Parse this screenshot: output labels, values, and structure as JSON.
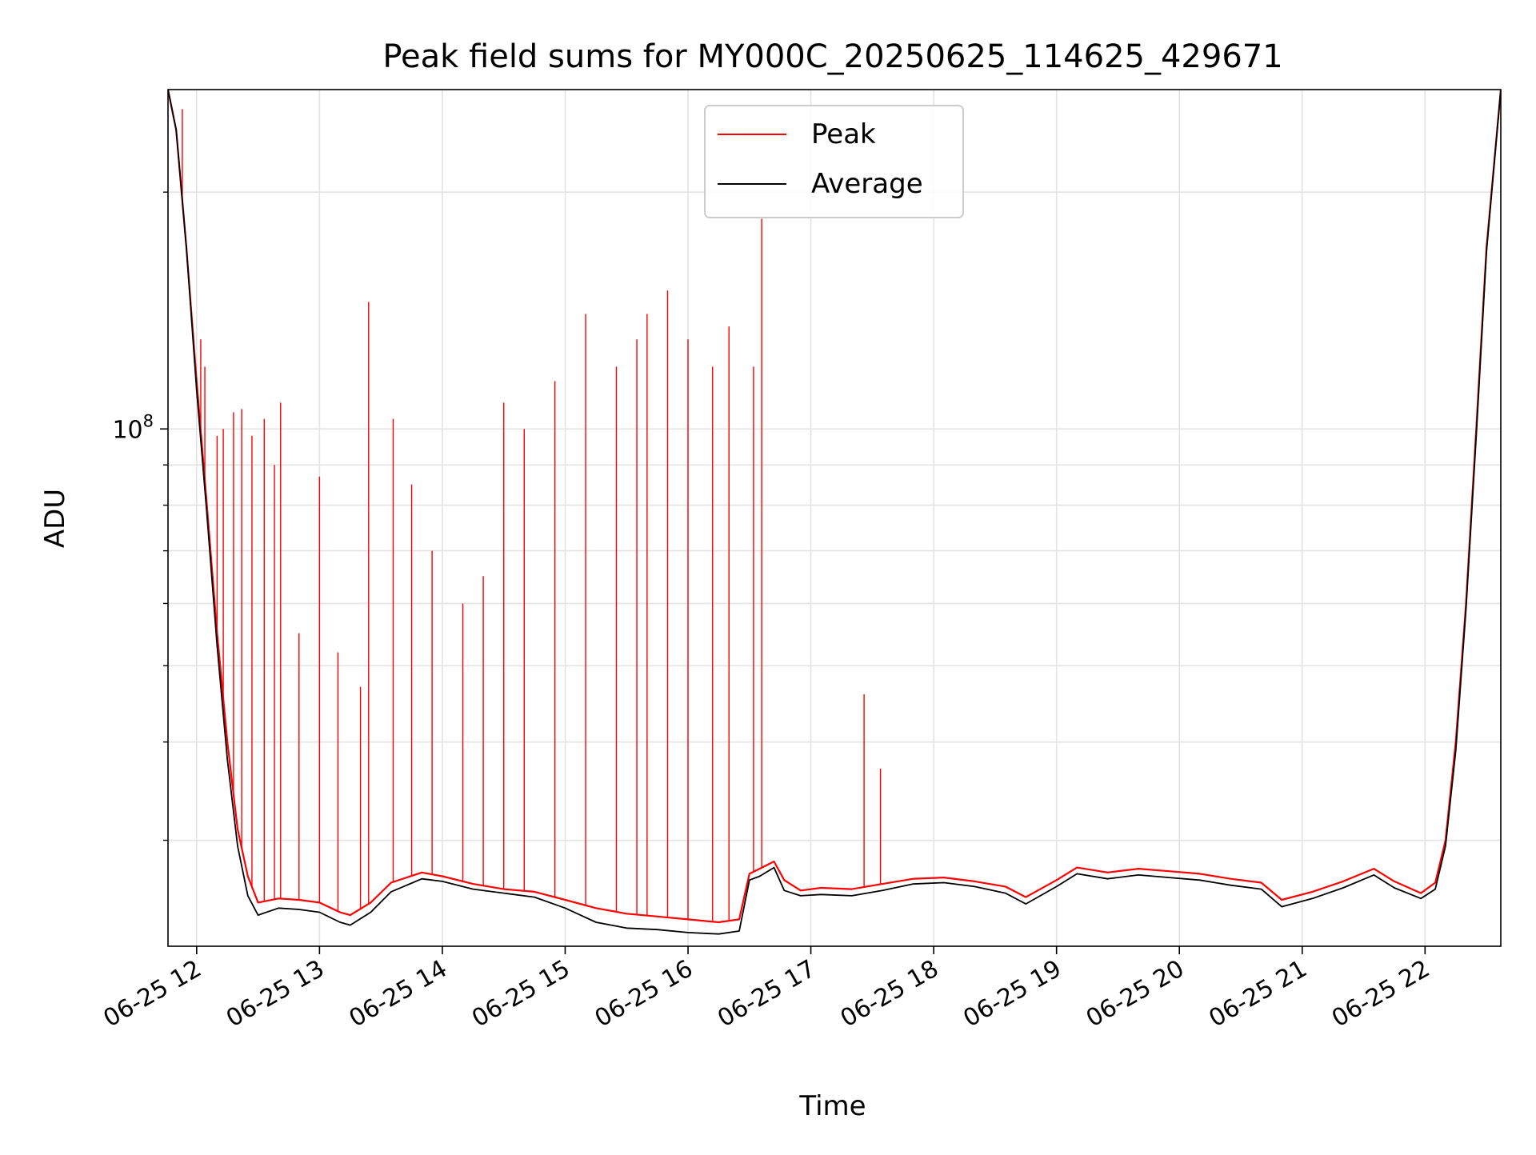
{
  "chart_data": {
    "type": "line",
    "title": "Peak field sums for MY000C_20250625_114625_429671",
    "xlabel": "Time",
    "ylabel": "ADU",
    "y_scale": "log",
    "grid": true,
    "legend_placement": "top-center",
    "ylim": [
      22000000,
      270000000
    ],
    "xlim": [
      "2025-06-25 11:46",
      "2025-06-25 22:37"
    ],
    "x_ticks": [
      "06-25 12",
      "06-25 13",
      "06-25 14",
      "06-25 15",
      "06-25 16",
      "06-25 17",
      "06-25 18",
      "06-25 19",
      "06-25 20",
      "06-25 21",
      "06-25 22"
    ],
    "y_ticks": [
      {
        "value": 100000000,
        "base": "10",
        "exp": "8"
      }
    ],
    "y_minor_ticks": [
      30000000,
      40000000,
      50000000,
      60000000,
      70000000,
      80000000,
      90000000,
      200000000
    ],
    "series": [
      {
        "name": "Peak",
        "color": "#ff0000",
        "baseline": [
          [
            "11:46",
            270000000
          ],
          [
            "11:50",
            240000000
          ],
          [
            "11:55",
            170000000
          ],
          [
            "12:00",
            115000000
          ],
          [
            "12:05",
            80000000
          ],
          [
            "12:10",
            55000000
          ],
          [
            "12:15",
            40000000
          ],
          [
            "12:20",
            31000000
          ],
          [
            "12:25",
            27000000
          ],
          [
            "12:30",
            25000000
          ],
          [
            "12:40",
            25300000
          ],
          [
            "12:50",
            25200000
          ],
          [
            "13:00",
            25000000
          ],
          [
            "13:10",
            24300000
          ],
          [
            "13:15",
            24100000
          ],
          [
            "13:25",
            25000000
          ],
          [
            "13:35",
            26500000
          ],
          [
            "13:50",
            27300000
          ],
          [
            "14:00",
            27000000
          ],
          [
            "14:15",
            26400000
          ],
          [
            "14:30",
            26000000
          ],
          [
            "14:45",
            25800000
          ],
          [
            "15:00",
            25200000
          ],
          [
            "15:15",
            24600000
          ],
          [
            "15:30",
            24200000
          ],
          [
            "15:45",
            24000000
          ],
          [
            "16:00",
            23800000
          ],
          [
            "16:15",
            23600000
          ],
          [
            "16:25",
            23800000
          ],
          [
            "16:30",
            27200000
          ],
          [
            "16:35",
            27600000
          ],
          [
            "16:42",
            28200000
          ],
          [
            "16:47",
            26700000
          ],
          [
            "16:55",
            25900000
          ],
          [
            "17:05",
            26100000
          ],
          [
            "17:20",
            26000000
          ],
          [
            "17:35",
            26400000
          ],
          [
            "17:50",
            26800000
          ],
          [
            "18:05",
            26900000
          ],
          [
            "18:20",
            26600000
          ],
          [
            "18:35",
            26200000
          ],
          [
            "18:45",
            25400000
          ],
          [
            "19:00",
            26700000
          ],
          [
            "19:10",
            27700000
          ],
          [
            "19:25",
            27300000
          ],
          [
            "19:40",
            27600000
          ],
          [
            "19:55",
            27400000
          ],
          [
            "20:10",
            27200000
          ],
          [
            "20:25",
            26800000
          ],
          [
            "20:40",
            26500000
          ],
          [
            "20:50",
            25200000
          ],
          [
            "21:05",
            25800000
          ],
          [
            "21:20",
            26600000
          ],
          [
            "21:35",
            27600000
          ],
          [
            "21:45",
            26600000
          ],
          [
            "21:58",
            25700000
          ],
          [
            "22:05",
            26500000
          ],
          [
            "22:10",
            30000000
          ],
          [
            "22:15",
            40000000
          ],
          [
            "22:20",
            60000000
          ],
          [
            "22:25",
            100000000
          ],
          [
            "22:30",
            170000000
          ],
          [
            "22:37",
            270000000
          ]
        ],
        "spikes": [
          [
            "11:53",
            255000000
          ],
          [
            "12:02",
            130000000
          ],
          [
            "12:04",
            120000000
          ],
          [
            "12:10",
            98000000
          ],
          [
            "12:13",
            100000000
          ],
          [
            "12:18",
            105000000
          ],
          [
            "12:22",
            106000000
          ],
          [
            "12:27",
            98000000
          ],
          [
            "12:33",
            103000000
          ],
          [
            "12:38",
            90000000
          ],
          [
            "12:41",
            108000000
          ],
          [
            "12:50",
            55000000
          ],
          [
            "13:00",
            87000000
          ],
          [
            "13:09",
            52000000
          ],
          [
            "13:20",
            47000000
          ],
          [
            "13:24",
            145000000
          ],
          [
            "13:36",
            103000000
          ],
          [
            "13:45",
            85000000
          ],
          [
            "13:55",
            70000000
          ],
          [
            "14:10",
            60000000
          ],
          [
            "14:20",
            65000000
          ],
          [
            "14:30",
            108000000
          ],
          [
            "14:40",
            100000000
          ],
          [
            "14:55",
            115000000
          ],
          [
            "15:10",
            140000000
          ],
          [
            "15:25",
            120000000
          ],
          [
            "15:35",
            130000000
          ],
          [
            "15:40",
            140000000
          ],
          [
            "15:50",
            150000000
          ],
          [
            "16:00",
            130000000
          ],
          [
            "16:12",
            120000000
          ],
          [
            "16:20",
            135000000
          ],
          [
            "16:32",
            120000000
          ],
          [
            "16:36",
            185000000
          ],
          [
            "17:26",
            46000000
          ],
          [
            "17:34",
            37000000
          ]
        ]
      },
      {
        "name": "Average",
        "color": "#000000",
        "baseline": [
          [
            "11:46",
            270000000
          ],
          [
            "11:50",
            240000000
          ],
          [
            "11:55",
            170000000
          ],
          [
            "12:00",
            112000000
          ],
          [
            "12:05",
            78000000
          ],
          [
            "12:10",
            53000000
          ],
          [
            "12:15",
            38000000
          ],
          [
            "12:20",
            29500000
          ],
          [
            "12:25",
            25500000
          ],
          [
            "12:30",
            24100000
          ],
          [
            "12:40",
            24600000
          ],
          [
            "12:50",
            24500000
          ],
          [
            "13:00",
            24300000
          ],
          [
            "13:10",
            23600000
          ],
          [
            "13:15",
            23400000
          ],
          [
            "13:25",
            24300000
          ],
          [
            "13:35",
            25800000
          ],
          [
            "13:50",
            26800000
          ],
          [
            "14:00",
            26600000
          ],
          [
            "14:15",
            26000000
          ],
          [
            "14:30",
            25700000
          ],
          [
            "14:45",
            25400000
          ],
          [
            "15:00",
            24600000
          ],
          [
            "15:15",
            23600000
          ],
          [
            "15:30",
            23200000
          ],
          [
            "15:45",
            23100000
          ],
          [
            "16:00",
            22900000
          ],
          [
            "16:15",
            22800000
          ],
          [
            "16:25",
            23000000
          ],
          [
            "16:30",
            26700000
          ],
          [
            "16:35",
            27000000
          ],
          [
            "16:42",
            27700000
          ],
          [
            "16:47",
            25900000
          ],
          [
            "16:55",
            25500000
          ],
          [
            "17:05",
            25600000
          ],
          [
            "17:20",
            25500000
          ],
          [
            "17:35",
            25900000
          ],
          [
            "17:50",
            26400000
          ],
          [
            "18:05",
            26500000
          ],
          [
            "18:20",
            26200000
          ],
          [
            "18:35",
            25700000
          ],
          [
            "18:45",
            24900000
          ],
          [
            "19:00",
            26200000
          ],
          [
            "19:10",
            27200000
          ],
          [
            "19:25",
            26800000
          ],
          [
            "19:40",
            27100000
          ],
          [
            "19:55",
            26900000
          ],
          [
            "20:10",
            26700000
          ],
          [
            "20:25",
            26300000
          ],
          [
            "20:40",
            26000000
          ],
          [
            "20:50",
            24700000
          ],
          [
            "21:05",
            25300000
          ],
          [
            "21:20",
            26100000
          ],
          [
            "21:35",
            27100000
          ],
          [
            "21:45",
            26100000
          ],
          [
            "21:58",
            25300000
          ],
          [
            "22:05",
            26000000
          ],
          [
            "22:10",
            29500000
          ],
          [
            "22:15",
            39000000
          ],
          [
            "22:20",
            59000000
          ],
          [
            "22:25",
            98000000
          ],
          [
            "22:30",
            168000000
          ],
          [
            "22:37",
            270000000
          ]
        ]
      }
    ]
  }
}
